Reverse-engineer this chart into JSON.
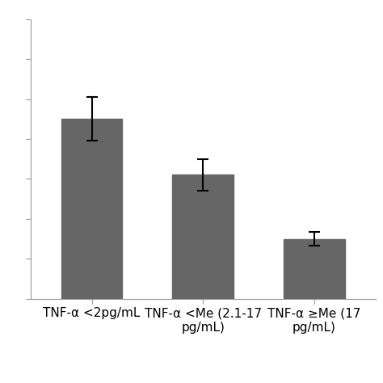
{
  "categories": [
    "TNF-α <2pg/mL",
    "TNF-α <Me (2.1-17\npg/mL)",
    "TNF-α ≥Me (17\npg/mL)"
  ],
  "values": [
    4.5,
    3.1,
    1.5
  ],
  "errors": [
    0.55,
    0.4,
    0.18
  ],
  "bar_color": "#666666",
  "background_color": "#ffffff",
  "ylim": [
    0,
    7
  ],
  "bar_width": 0.55,
  "figsize": [
    4.74,
    4.74
  ],
  "dpi": 100,
  "tick_label_fontsize": 11
}
